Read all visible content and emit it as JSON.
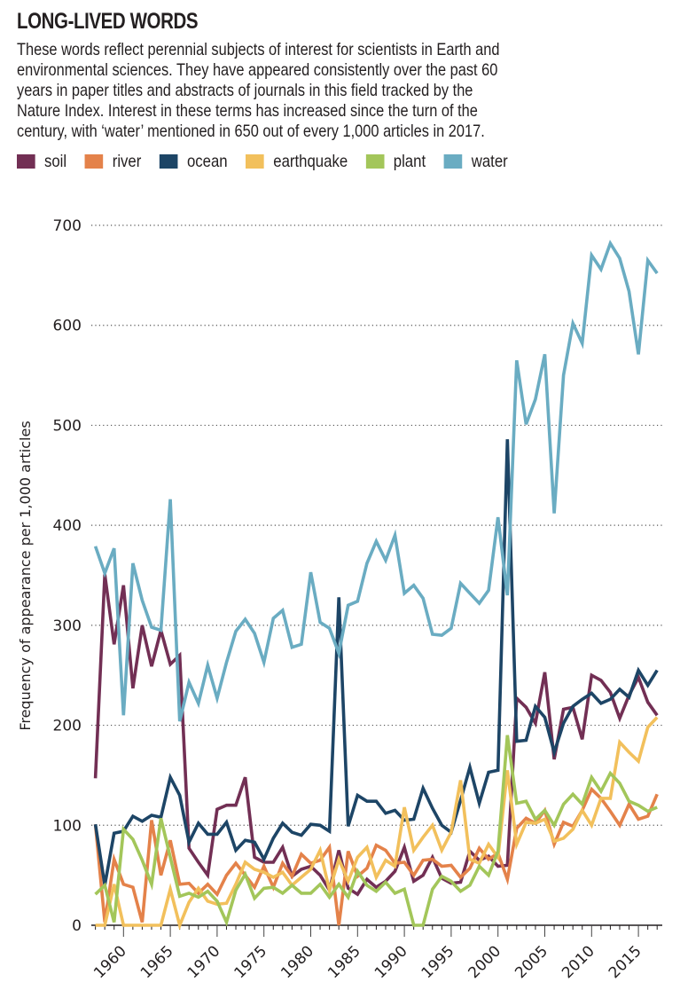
{
  "header": {
    "title": "LONG-LIVED WORDS",
    "subtitle_lines": [
      "These words reflect perennial subjects of interest for scientists in Earth and",
      "environmental sciences. They have appeared consistently over the past 60",
      "years in paper titles and abstracts of journals in this field tracked by the",
      "Nature Index. Interest in these terms has increased since the turn of the",
      "century, with ‘water’ mentioned in 650 out of every 1,000 articles in 2017."
    ]
  },
  "chart_data": {
    "type": "line",
    "title": "LONG-LIVED WORDS",
    "xlabel": "",
    "ylabel": "Frequency of appearance per 1,000 articles",
    "ylim": [
      0,
      700
    ],
    "xlim": [
      1956.5,
      2017.5
    ],
    "yticks": [
      0,
      100,
      200,
      300,
      400,
      500,
      600,
      700
    ],
    "ytick_labels": [
      "0",
      "100",
      "200",
      "300",
      "400",
      "500",
      "600",
      "700"
    ],
    "xticks": [
      1960,
      1965,
      1970,
      1975,
      1980,
      1985,
      1990,
      1995,
      2000,
      2005,
      2010,
      2015
    ],
    "xtick_labels": [
      "1960",
      "1965",
      "1970",
      "1975",
      "1980",
      "1985",
      "1990",
      "1995",
      "2000",
      "2005",
      "2010",
      "2015"
    ],
    "grid": "horizontal-dotted",
    "legend_position": "top-left",
    "x": [
      1957,
      1958,
      1959,
      1960,
      1961,
      1962,
      1963,
      1964,
      1965,
      1966,
      1967,
      1968,
      1969,
      1970,
      1971,
      1972,
      1973,
      1974,
      1975,
      1976,
      1977,
      1978,
      1979,
      1980,
      1981,
      1982,
      1983,
      1984,
      1985,
      1986,
      1987,
      1988,
      1989,
      1990,
      1991,
      1992,
      1993,
      1994,
      1995,
      1996,
      1997,
      1998,
      1999,
      2000,
      2001,
      2002,
      2003,
      2004,
      2005,
      2006,
      2007,
      2008,
      2009,
      2010,
      2011,
      2012,
      2013,
      2014,
      2015,
      2016,
      2017
    ],
    "series": [
      {
        "name": "soil",
        "color": "#722F54",
        "values": [
          147,
          351,
          281,
          340,
          237,
          300,
          259,
          295,
          261,
          270,
          77,
          63,
          50,
          116,
          120,
          120,
          148,
          68,
          63,
          63,
          78,
          49,
          56,
          59,
          50,
          35,
          75,
          37,
          31,
          46,
          38,
          44,
          54,
          78,
          44,
          50,
          68,
          47,
          42,
          43,
          74,
          65,
          69,
          59,
          60,
          227,
          218,
          202,
          253,
          166,
          216,
          218,
          186,
          250,
          245,
          233,
          207,
          230,
          248,
          223,
          210
        ]
      },
      {
        "name": "river",
        "color": "#E4824A",
        "values": [
          101,
          3,
          66,
          41,
          38,
          3,
          105,
          50,
          85,
          41,
          42,
          32,
          41,
          31,
          50,
          62,
          50,
          38,
          59,
          38,
          62,
          49,
          71,
          62,
          65,
          78,
          0,
          74,
          49,
          57,
          80,
          75,
          62,
          63,
          50,
          65,
          66,
          59,
          60,
          48,
          57,
          77,
          66,
          72,
          46,
          97,
          107,
          102,
          115,
          81,
          103,
          99,
          115,
          136,
          127,
          114,
          100,
          121,
          106,
          109,
          131
        ]
      },
      {
        "name": "ocean",
        "color": "#1D4566",
        "values": [
          101,
          40,
          92,
          94,
          109,
          104,
          110,
          108,
          148,
          130,
          83,
          102,
          91,
          91,
          103,
          75,
          85,
          83,
          66,
          87,
          102,
          93,
          90,
          101,
          100,
          94,
          328,
          99,
          130,
          124,
          124,
          112,
          115,
          105,
          106,
          137,
          117,
          100,
          93,
          125,
          158,
          122,
          153,
          155,
          486,
          184,
          185,
          219,
          208,
          173,
          202,
          219,
          226,
          232,
          222,
          226,
          236,
          228,
          255,
          240,
          255
        ]
      },
      {
        "name": "earthquake",
        "color": "#F2C05C",
        "values": [
          0,
          0,
          41,
          0,
          0,
          0,
          0,
          0,
          36,
          0,
          23,
          37,
          24,
          21,
          22,
          41,
          63,
          56,
          53,
          48,
          53,
          40,
          48,
          56,
          75,
          35,
          66,
          44,
          68,
          78,
          48,
          65,
          59,
          118,
          75,
          88,
          100,
          75,
          93,
          145,
          66,
          62,
          81,
          68,
          155,
          81,
          103,
          102,
          106,
          84,
          87,
          96,
          115,
          100,
          127,
          127,
          183,
          173,
          164,
          198,
          208
        ]
      },
      {
        "name": "plant",
        "color": "#A3C65A",
        "values": [
          31,
          40,
          3,
          96,
          86,
          65,
          41,
          107,
          68,
          29,
          32,
          28,
          34,
          24,
          3,
          35,
          51,
          27,
          37,
          38,
          32,
          40,
          32,
          32,
          41,
          28,
          41,
          28,
          54,
          40,
          34,
          43,
          32,
          36,
          0,
          0,
          36,
          49,
          44,
          34,
          40,
          59,
          50,
          74,
          190,
          122,
          124,
          106,
          115,
          100,
          121,
          131,
          121,
          148,
          134,
          152,
          142,
          124,
          120,
          114,
          118
        ]
      },
      {
        "name": "water",
        "color": "#6AACC2",
        "values": [
          379,
          352,
          377,
          210,
          362,
          325,
          298,
          295,
          426,
          204,
          243,
          222,
          260,
          227,
          263,
          294,
          306,
          292,
          263,
          307,
          315,
          278,
          281,
          353,
          303,
          297,
          272,
          320,
          324,
          362,
          384,
          365,
          390,
          332,
          340,
          327,
          291,
          290,
          297,
          342,
          332,
          322,
          335,
          408,
          330,
          565,
          501,
          526,
          571,
          412,
          550,
          602,
          582,
          670,
          656,
          682,
          667,
          634,
          571,
          665,
          652
        ]
      }
    ]
  }
}
